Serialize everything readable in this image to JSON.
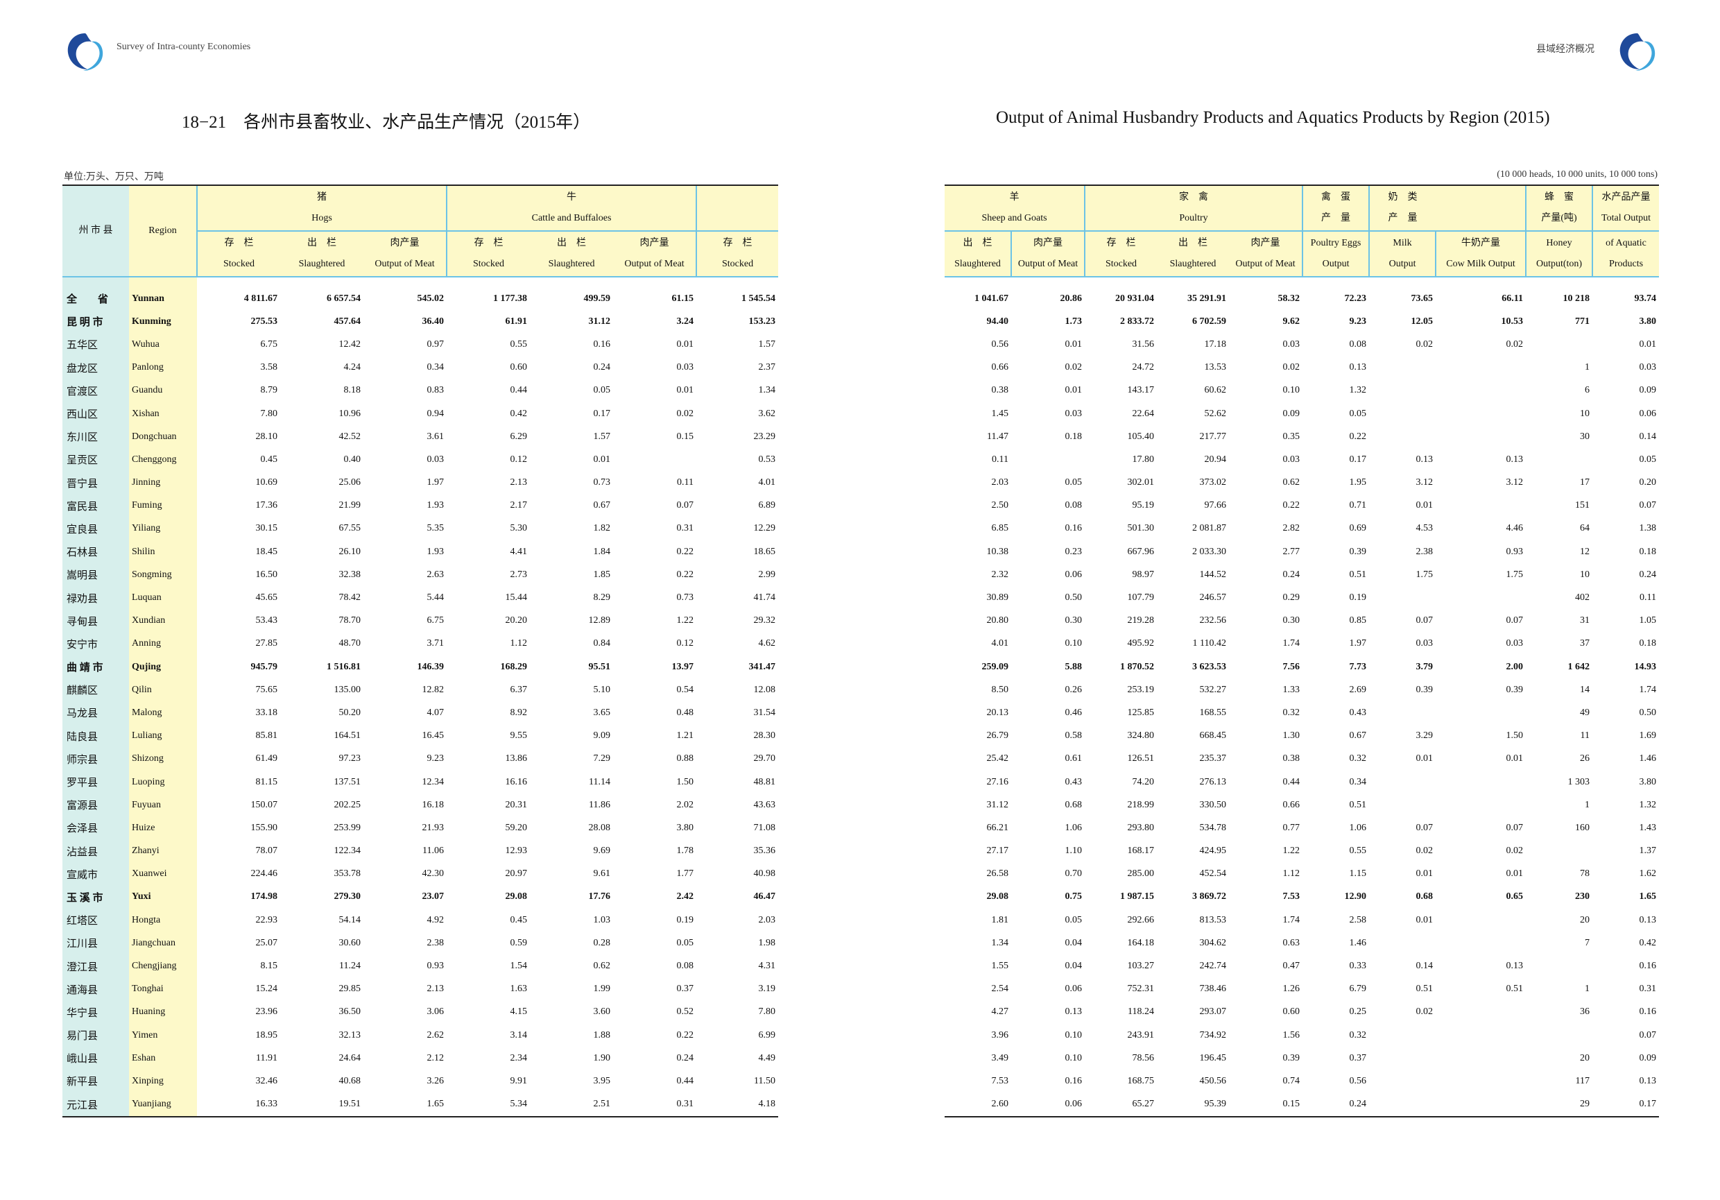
{
  "header": {
    "left_text": "Survey of Intra-county Economies",
    "right_text": "县域经济概况",
    "logo_icon": "swirl-logo-icon"
  },
  "titles": {
    "cn": "18−21　各州市县畜牧业、水产品生产情况（2015年）",
    "en": "Output of Animal Husbandry Products and Aquatics Products by Region (2015)"
  },
  "units": {
    "cn": "单位:万头、万只、万吨",
    "en": "(10 000 heads, 10 000 units, 10 000 tons)"
  },
  "left_headers": {
    "region_cn": "州 市 县",
    "region_en": "Region",
    "hogs_cn": "猪",
    "hogs_en": "Hogs",
    "cattle_cn": "牛",
    "cattle_en": "Cattle and Buffaloes",
    "cols": [
      {
        "cn": "存　栏",
        "en": "Stocked"
      },
      {
        "cn": "出　栏",
        "en": "Slaughtered"
      },
      {
        "cn": "肉产量",
        "en": "Output of Meat"
      },
      {
        "cn": "存　栏",
        "en": "Stocked"
      },
      {
        "cn": "出　栏",
        "en": "Slaughtered"
      },
      {
        "cn": "肉产量",
        "en": "Output of Meat"
      },
      {
        "cn": "存　栏",
        "en": "Stocked"
      }
    ]
  },
  "right_headers": {
    "sheep_cn": "羊",
    "sheep_en": "Sheep and Goats",
    "poultry_cn": "家　禽",
    "poultry_en": "Poultry",
    "eggs_cn1": "禽　蛋",
    "eggs_cn2": "产　量",
    "milk_cn1": "奶　类",
    "milk_cn2": "产　量",
    "honey_cn1": "蜂　蜜",
    "honey_cn2": "产量(吨)",
    "aqua_cn": "水产品产量",
    "aqua_en1": "Total Output",
    "cols": [
      {
        "cn": "出　栏",
        "en": "Slaughtered"
      },
      {
        "cn": "肉产量",
        "en": "Output of Meat"
      },
      {
        "cn": "存　栏",
        "en": "Stocked"
      },
      {
        "cn": "出　栏",
        "en": "Slaughtered"
      },
      {
        "cn": "肉产量",
        "en": "Output of Meat"
      },
      {
        "cn": "Poultry Eggs",
        "en": "Output"
      },
      {
        "cn": "Milk",
        "en": "Output"
      },
      {
        "cn": "牛奶产量",
        "en": "Cow Milk Output"
      },
      {
        "cn": "Honey",
        "en": "Output(ton)"
      },
      {
        "cn": "of Aquatic",
        "en": "Products"
      }
    ]
  },
  "rows": [
    {
      "zh": "全　　省",
      "en": "Yunnan",
      "b": true,
      "l": [
        "4 811.67",
        "6 657.54",
        "545.02",
        "1 177.38",
        "499.59",
        "61.15",
        "1 545.54"
      ],
      "r": [
        "1 041.67",
        "20.86",
        "20 931.04",
        "35 291.91",
        "58.32",
        "72.23",
        "73.65",
        "66.11",
        "10 218",
        "93.74"
      ]
    },
    {
      "zh": "昆 明 市",
      "en": "Kunming",
      "b": true,
      "l": [
        "275.53",
        "457.64",
        "36.40",
        "61.91",
        "31.12",
        "3.24",
        "153.23"
      ],
      "r": [
        "94.40",
        "1.73",
        "2 833.72",
        "6 702.59",
        "9.62",
        "9.23",
        "12.05",
        "10.53",
        "771",
        "3.80"
      ]
    },
    {
      "zh": "五华区",
      "en": "Wuhua",
      "l": [
        "6.75",
        "12.42",
        "0.97",
        "0.55",
        "0.16",
        "0.01",
        "1.57"
      ],
      "r": [
        "0.56",
        "0.01",
        "31.56",
        "17.18",
        "0.03",
        "0.08",
        "0.02",
        "0.02",
        "",
        "0.01"
      ]
    },
    {
      "zh": "盘龙区",
      "en": "Panlong",
      "l": [
        "3.58",
        "4.24",
        "0.34",
        "0.60",
        "0.24",
        "0.03",
        "2.37"
      ],
      "r": [
        "0.66",
        "0.02",
        "24.72",
        "13.53",
        "0.02",
        "0.13",
        "",
        "",
        "1",
        "0.03"
      ]
    },
    {
      "zh": "官渡区",
      "en": "Guandu",
      "l": [
        "8.79",
        "8.18",
        "0.83",
        "0.44",
        "0.05",
        "0.01",
        "1.34"
      ],
      "r": [
        "0.38",
        "0.01",
        "143.17",
        "60.62",
        "0.10",
        "1.32",
        "",
        "",
        "6",
        "0.09"
      ]
    },
    {
      "zh": "西山区",
      "en": "Xishan",
      "l": [
        "7.80",
        "10.96",
        "0.94",
        "0.42",
        "0.17",
        "0.02",
        "3.62"
      ],
      "r": [
        "1.45",
        "0.03",
        "22.64",
        "52.62",
        "0.09",
        "0.05",
        "",
        "",
        "10",
        "0.06"
      ]
    },
    {
      "zh": "东川区",
      "en": "Dongchuan",
      "l": [
        "28.10",
        "42.52",
        "3.61",
        "6.29",
        "1.57",
        "0.15",
        "23.29"
      ],
      "r": [
        "11.47",
        "0.18",
        "105.40",
        "217.77",
        "0.35",
        "0.22",
        "",
        "",
        "30",
        "0.14"
      ]
    },
    {
      "zh": "呈贡区",
      "en": "Chenggong",
      "l": [
        "0.45",
        "0.40",
        "0.03",
        "0.12",
        "0.01",
        "",
        "0.53"
      ],
      "r": [
        "0.11",
        "",
        "17.80",
        "20.94",
        "0.03",
        "0.17",
        "0.13",
        "0.13",
        "",
        "0.05"
      ]
    },
    {
      "zh": "晋宁县",
      "en": "Jinning",
      "l": [
        "10.69",
        "25.06",
        "1.97",
        "2.13",
        "0.73",
        "0.11",
        "4.01"
      ],
      "r": [
        "2.03",
        "0.05",
        "302.01",
        "373.02",
        "0.62",
        "1.95",
        "3.12",
        "3.12",
        "17",
        "0.20"
      ]
    },
    {
      "zh": "富民县",
      "en": "Fuming",
      "l": [
        "17.36",
        "21.99",
        "1.93",
        "2.17",
        "0.67",
        "0.07",
        "6.89"
      ],
      "r": [
        "2.50",
        "0.08",
        "95.19",
        "97.66",
        "0.22",
        "0.71",
        "0.01",
        "",
        "151",
        "0.07"
      ]
    },
    {
      "zh": "宜良县",
      "en": "Yiliang",
      "l": [
        "30.15",
        "67.55",
        "5.35",
        "5.30",
        "1.82",
        "0.31",
        "12.29"
      ],
      "r": [
        "6.85",
        "0.16",
        "501.30",
        "2 081.87",
        "2.82",
        "0.69",
        "4.53",
        "4.46",
        "64",
        "1.38"
      ]
    },
    {
      "zh": "石林县",
      "en": "Shilin",
      "l": [
        "18.45",
        "26.10",
        "1.93",
        "4.41",
        "1.84",
        "0.22",
        "18.65"
      ],
      "r": [
        "10.38",
        "0.23",
        "667.96",
        "2 033.30",
        "2.77",
        "0.39",
        "2.38",
        "0.93",
        "12",
        "0.18"
      ]
    },
    {
      "zh": "嵩明县",
      "en": "Songming",
      "l": [
        "16.50",
        "32.38",
        "2.63",
        "2.73",
        "1.85",
        "0.22",
        "2.99"
      ],
      "r": [
        "2.32",
        "0.06",
        "98.97",
        "144.52",
        "0.24",
        "0.51",
        "1.75",
        "1.75",
        "10",
        "0.24"
      ]
    },
    {
      "zh": "禄劝县",
      "en": "Luquan",
      "l": [
        "45.65",
        "78.42",
        "5.44",
        "15.44",
        "8.29",
        "0.73",
        "41.74"
      ],
      "r": [
        "30.89",
        "0.50",
        "107.79",
        "246.57",
        "0.29",
        "0.19",
        "",
        "",
        "402",
        "0.11"
      ]
    },
    {
      "zh": "寻甸县",
      "en": "Xundian",
      "l": [
        "53.43",
        "78.70",
        "6.75",
        "20.20",
        "12.89",
        "1.22",
        "29.32"
      ],
      "r": [
        "20.80",
        "0.30",
        "219.28",
        "232.56",
        "0.30",
        "0.85",
        "0.07",
        "0.07",
        "31",
        "1.05"
      ]
    },
    {
      "zh": "安宁市",
      "en": "Anning",
      "l": [
        "27.85",
        "48.70",
        "3.71",
        "1.12",
        "0.84",
        "0.12",
        "4.62"
      ],
      "r": [
        "4.01",
        "0.10",
        "495.92",
        "1 110.42",
        "1.74",
        "1.97",
        "0.03",
        "0.03",
        "37",
        "0.18"
      ]
    },
    {
      "zh": "曲 靖 市",
      "en": "Qujing",
      "b": true,
      "l": [
        "945.79",
        "1 516.81",
        "146.39",
        "168.29",
        "95.51",
        "13.97",
        "341.47"
      ],
      "r": [
        "259.09",
        "5.88",
        "1 870.52",
        "3 623.53",
        "7.56",
        "7.73",
        "3.79",
        "2.00",
        "1 642",
        "14.93"
      ]
    },
    {
      "zh": "麒麟区",
      "en": "Qilin",
      "l": [
        "75.65",
        "135.00",
        "12.82",
        "6.37",
        "5.10",
        "0.54",
        "12.08"
      ],
      "r": [
        "8.50",
        "0.26",
        "253.19",
        "532.27",
        "1.33",
        "2.69",
        "0.39",
        "0.39",
        "14",
        "1.74"
      ]
    },
    {
      "zh": "马龙县",
      "en": "Malong",
      "l": [
        "33.18",
        "50.20",
        "4.07",
        "8.92",
        "3.65",
        "0.48",
        "31.54"
      ],
      "r": [
        "20.13",
        "0.46",
        "125.85",
        "168.55",
        "0.32",
        "0.43",
        "",
        "",
        "49",
        "0.50"
      ]
    },
    {
      "zh": "陆良县",
      "en": "Luliang",
      "l": [
        "85.81",
        "164.51",
        "16.45",
        "9.55",
        "9.09",
        "1.21",
        "28.30"
      ],
      "r": [
        "26.79",
        "0.58",
        "324.80",
        "668.45",
        "1.30",
        "0.67",
        "3.29",
        "1.50",
        "11",
        "1.69"
      ]
    },
    {
      "zh": "师宗县",
      "en": "Shizong",
      "l": [
        "61.49",
        "97.23",
        "9.23",
        "13.86",
        "7.29",
        "0.88",
        "29.70"
      ],
      "r": [
        "25.42",
        "0.61",
        "126.51",
        "235.37",
        "0.38",
        "0.32",
        "0.01",
        "0.01",
        "26",
        "1.46"
      ]
    },
    {
      "zh": "罗平县",
      "en": "Luoping",
      "l": [
        "81.15",
        "137.51",
        "12.34",
        "16.16",
        "11.14",
        "1.50",
        "48.81"
      ],
      "r": [
        "27.16",
        "0.43",
        "74.20",
        "276.13",
        "0.44",
        "0.34",
        "",
        "",
        "1 303",
        "3.80"
      ]
    },
    {
      "zh": "富源县",
      "en": "Fuyuan",
      "l": [
        "150.07",
        "202.25",
        "16.18",
        "20.31",
        "11.86",
        "2.02",
        "43.63"
      ],
      "r": [
        "31.12",
        "0.68",
        "218.99",
        "330.50",
        "0.66",
        "0.51",
        "",
        "",
        "1",
        "1.32"
      ]
    },
    {
      "zh": "会泽县",
      "en": "Huize",
      "l": [
        "155.90",
        "253.99",
        "21.93",
        "59.20",
        "28.08",
        "3.80",
        "71.08"
      ],
      "r": [
        "66.21",
        "1.06",
        "293.80",
        "534.78",
        "0.77",
        "1.06",
        "0.07",
        "0.07",
        "160",
        "1.43"
      ]
    },
    {
      "zh": "沾益县",
      "en": "Zhanyi",
      "l": [
        "78.07",
        "122.34",
        "11.06",
        "12.93",
        "9.69",
        "1.78",
        "35.36"
      ],
      "r": [
        "27.17",
        "1.10",
        "168.17",
        "424.95",
        "1.22",
        "0.55",
        "0.02",
        "0.02",
        "",
        "1.37"
      ]
    },
    {
      "zh": "宣威市",
      "en": "Xuanwei",
      "l": [
        "224.46",
        "353.78",
        "42.30",
        "20.97",
        "9.61",
        "1.77",
        "40.98"
      ],
      "r": [
        "26.58",
        "0.70",
        "285.00",
        "452.54",
        "1.12",
        "1.15",
        "0.01",
        "0.01",
        "78",
        "1.62"
      ]
    },
    {
      "zh": "玉 溪 市",
      "en": "Yuxi",
      "b": true,
      "l": [
        "174.98",
        "279.30",
        "23.07",
        "29.08",
        "17.76",
        "2.42",
        "46.47"
      ],
      "r": [
        "29.08",
        "0.75",
        "1 987.15",
        "3 869.72",
        "7.53",
        "12.90",
        "0.68",
        "0.65",
        "230",
        "1.65"
      ]
    },
    {
      "zh": "红塔区",
      "en": "Hongta",
      "l": [
        "22.93",
        "54.14",
        "4.92",
        "0.45",
        "1.03",
        "0.19",
        "2.03"
      ],
      "r": [
        "1.81",
        "0.05",
        "292.66",
        "813.53",
        "1.74",
        "2.58",
        "0.01",
        "",
        "20",
        "0.13"
      ]
    },
    {
      "zh": "江川县",
      "en": "Jiangchuan",
      "l": [
        "25.07",
        "30.60",
        "2.38",
        "0.59",
        "0.28",
        "0.05",
        "1.98"
      ],
      "r": [
        "1.34",
        "0.04",
        "164.18",
        "304.62",
        "0.63",
        "1.46",
        "",
        "",
        "7",
        "0.42"
      ]
    },
    {
      "zh": "澄江县",
      "en": "Chengjiang",
      "l": [
        "8.15",
        "11.24",
        "0.93",
        "1.54",
        "0.62",
        "0.08",
        "4.31"
      ],
      "r": [
        "1.55",
        "0.04",
        "103.27",
        "242.74",
        "0.47",
        "0.33",
        "0.14",
        "0.13",
        "",
        "0.16"
      ]
    },
    {
      "zh": "通海县",
      "en": "Tonghai",
      "l": [
        "15.24",
        "29.85",
        "2.13",
        "1.63",
        "1.99",
        "0.37",
        "3.19"
      ],
      "r": [
        "2.54",
        "0.06",
        "752.31",
        "738.46",
        "1.26",
        "6.79",
        "0.51",
        "0.51",
        "1",
        "0.31"
      ]
    },
    {
      "zh": "华宁县",
      "en": "Huaning",
      "l": [
        "23.96",
        "36.50",
        "3.06",
        "4.15",
        "3.60",
        "0.52",
        "7.80"
      ],
      "r": [
        "4.27",
        "0.13",
        "118.24",
        "293.07",
        "0.60",
        "0.25",
        "0.02",
        "",
        "36",
        "0.16"
      ]
    },
    {
      "zh": "易门县",
      "en": "Yimen",
      "l": [
        "18.95",
        "32.13",
        "2.62",
        "3.14",
        "1.88",
        "0.22",
        "6.99"
      ],
      "r": [
        "3.96",
        "0.10",
        "243.91",
        "734.92",
        "1.56",
        "0.32",
        "",
        "",
        "",
        "0.07"
      ]
    },
    {
      "zh": "峨山县",
      "en": "Eshan",
      "l": [
        "11.91",
        "24.64",
        "2.12",
        "2.34",
        "1.90",
        "0.24",
        "4.49"
      ],
      "r": [
        "3.49",
        "0.10",
        "78.56",
        "196.45",
        "0.39",
        "0.37",
        "",
        "",
        "20",
        "0.09"
      ]
    },
    {
      "zh": "新平县",
      "en": "Xinping",
      "l": [
        "32.46",
        "40.68",
        "3.26",
        "9.91",
        "3.95",
        "0.44",
        "11.50"
      ],
      "r": [
        "7.53",
        "0.16",
        "168.75",
        "450.56",
        "0.74",
        "0.56",
        "",
        "",
        "117",
        "0.13"
      ]
    },
    {
      "zh": "元江县",
      "en": "Yuanjiang",
      "l": [
        "16.33",
        "19.51",
        "1.65",
        "5.34",
        "2.51",
        "0.31",
        "4.18"
      ],
      "r": [
        "2.60",
        "0.06",
        "65.27",
        "95.39",
        "0.15",
        "0.24",
        "",
        "",
        "29",
        "0.17"
      ]
    }
  ]
}
